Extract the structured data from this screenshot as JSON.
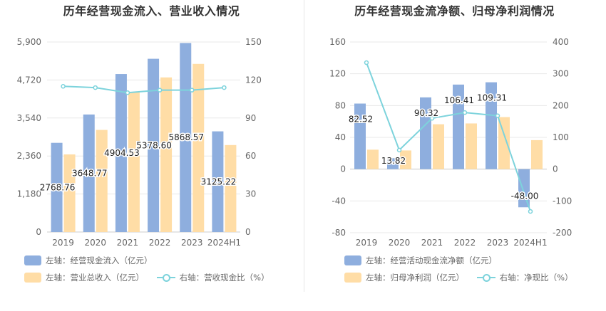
{
  "colors": {
    "bar_primary": "#8eaede",
    "bar_secondary": "#ffdda6",
    "line": "#7dd3dc",
    "grid": "#e8e8e8",
    "axis_text": "#666666"
  },
  "chart_data": [
    {
      "type": "bar",
      "title": "历年经营现金流入、营业收入情况",
      "categories": [
        "2019",
        "2020",
        "2021",
        "2022",
        "2023",
        "2024H1"
      ],
      "y_left": {
        "ticks": [
          "0",
          "1,180",
          "2,360",
          "3,540",
          "4,720",
          "5,900"
        ],
        "ylim": [
          0,
          5900
        ]
      },
      "y_right": {
        "ticks": [
          "0",
          "30",
          "60",
          "90",
          "120",
          "150"
        ],
        "ylim": [
          0,
          150
        ]
      },
      "series": [
        {
          "name": "左轴：经营现金流入（亿元）",
          "axis": "left",
          "kind": "bar",
          "values": [
            2768.76,
            3648.77,
            4904.53,
            5378.6,
            5868.57,
            3125.22
          ],
          "labels": [
            "2768.76",
            "3648.77",
            "4904.53",
            "5378.60",
            "5868.57",
            "3125.22"
          ]
        },
        {
          "name": "左轴：营业总收入（亿元）",
          "axis": "left",
          "kind": "bar",
          "values": [
            2410,
            3170,
            4340,
            4800,
            5220,
            2700
          ]
        },
        {
          "name": "右轴：营收现金比（%）",
          "axis": "right",
          "kind": "line",
          "values": [
            115,
            114,
            110,
            112,
            112,
            114
          ]
        }
      ],
      "grid": true,
      "legend": "bottom-left"
    },
    {
      "type": "bar",
      "title": "历年经营现金流净额、归母净利润情况",
      "categories": [
        "2019",
        "2020",
        "2021",
        "2022",
        "2023",
        "2024H1"
      ],
      "y_left": {
        "ticks": [
          "-80",
          "-40",
          "0",
          "40",
          "80",
          "120",
          "160"
        ],
        "ylim": [
          -80,
          160
        ]
      },
      "y_right": {
        "ticks": [
          "-200",
          "-100",
          "0",
          "100",
          "200",
          "300",
          "400"
        ],
        "ylim": [
          -200,
          400
        ]
      },
      "series": [
        {
          "name": "左轴：经营活动现金流净额（亿元）",
          "axis": "left",
          "kind": "bar",
          "values": [
            82.52,
            13.82,
            90.32,
            106.41,
            109.31,
            -48.0
          ],
          "labels": [
            "82.52",
            "13.82",
            "90.32",
            "106.41",
            "109.31",
            "-48.00"
          ]
        },
        {
          "name": "左轴：归母净利润（亿元）",
          "axis": "left",
          "kind": "bar",
          "values": [
            24.5,
            23.5,
            56.5,
            57.5,
            65.5,
            36.5
          ]
        },
        {
          "name": "右轴：净现比（%）",
          "axis": "right",
          "kind": "line",
          "values": [
            335,
            60,
            160,
            178,
            168,
            -133
          ]
        }
      ],
      "grid": true,
      "legend": "bottom-left"
    }
  ]
}
